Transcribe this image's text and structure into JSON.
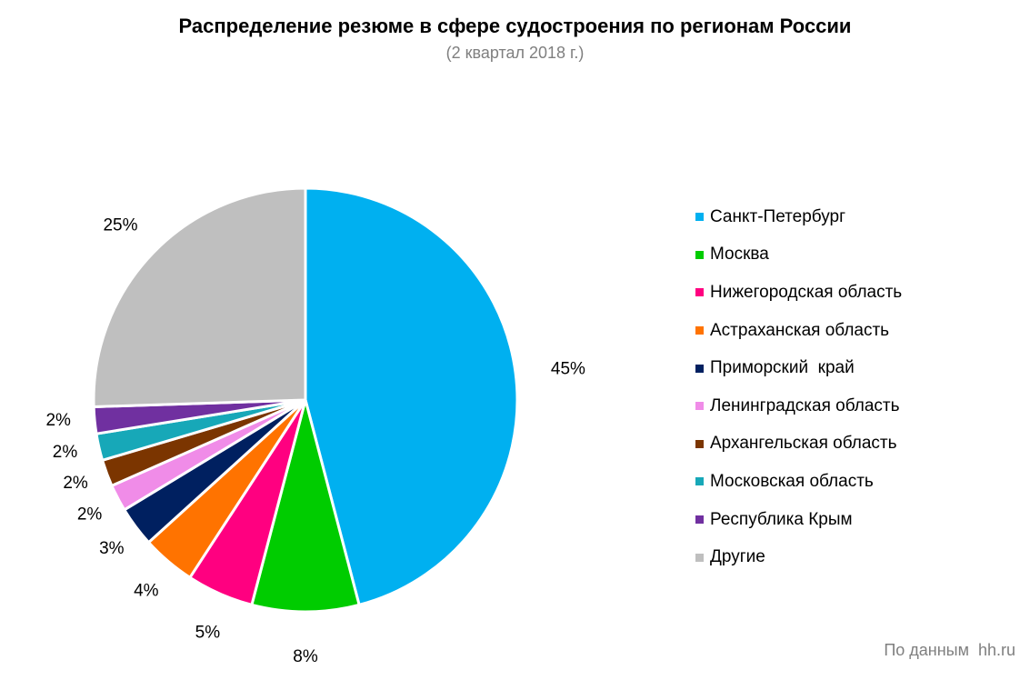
{
  "chart_data": {
    "type": "pie",
    "title": "Распределение резюме в сфере судостроения по регионам России",
    "subtitle": "(2 квартал 2018 г.)",
    "slices": [
      {
        "label": "Санкт-Петербург",
        "value": 45,
        "value_label": "45%",
        "color": "#00B0F0"
      },
      {
        "label": "Москва",
        "value": 8,
        "value_label": "8%",
        "color": "#00CC00"
      },
      {
        "label": "Нижегородская область",
        "value": 5,
        "value_label": "5%",
        "color": "#FF0080"
      },
      {
        "label": "Астраханская область",
        "value": 4,
        "value_label": "4%",
        "color": "#FF7300"
      },
      {
        "label": "Приморский  край",
        "value": 3,
        "value_label": "3%",
        "color": "#002060"
      },
      {
        "label": "Ленинградская область",
        "value": 2,
        "value_label": "2%",
        "color": "#F08CE8"
      },
      {
        "label": "Архангельская область",
        "value": 2,
        "value_label": "2%",
        "color": "#7B3500"
      },
      {
        "label": "Московская область",
        "value": 2,
        "value_label": "2%",
        "color": "#17A8B8"
      },
      {
        "label": "Республика Крым",
        "value": 2,
        "value_label": "2%",
        "color": "#7030A0"
      },
      {
        "label": "Другие",
        "value": 25,
        "value_label": "25%",
        "color": "#BFBFBF"
      }
    ],
    "legend_position": "right"
  },
  "source": "По данным  hh.ru"
}
